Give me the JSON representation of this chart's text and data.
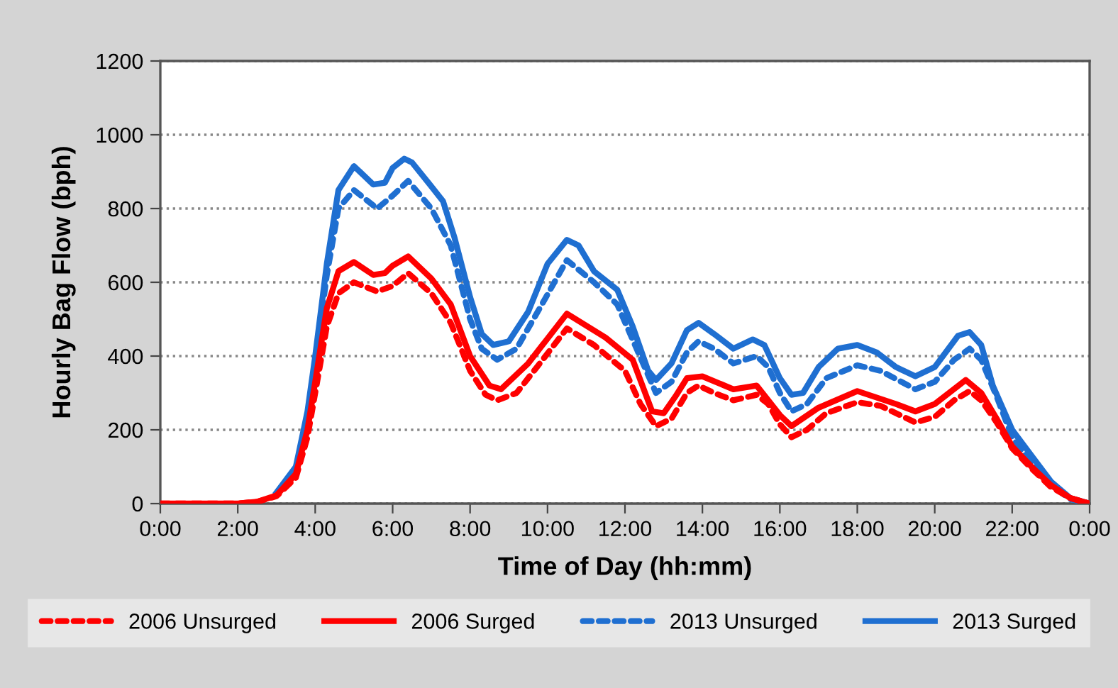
{
  "chart_data": {
    "type": "line",
    "xlabel": "Time of Day (hh:mm)",
    "ylabel": "Hourly Bag Flow (bph)",
    "xlim": [
      0,
      24
    ],
    "xticks": [
      {
        "value": 0,
        "label": "0:00"
      },
      {
        "value": 2,
        "label": "2:00"
      },
      {
        "value": 4,
        "label": "4:00"
      },
      {
        "value": 6,
        "label": "6:00"
      },
      {
        "value": 8,
        "label": "8:00"
      },
      {
        "value": 10,
        "label": "10:00"
      },
      {
        "value": 12,
        "label": "12:00"
      },
      {
        "value": 14,
        "label": "14:00"
      },
      {
        "value": 16,
        "label": "16:00"
      },
      {
        "value": 18,
        "label": "18:00"
      },
      {
        "value": 20,
        "label": "20:00"
      },
      {
        "value": 22,
        "label": "22:00"
      },
      {
        "value": 24,
        "label": "0:00"
      }
    ],
    "ylim": [
      0,
      1200
    ],
    "yticks": [
      0,
      200,
      400,
      600,
      800,
      1000,
      1200
    ],
    "grid": "y",
    "legend": "bottom",
    "marker": "none",
    "series": [
      {
        "name": "2006 Unsurged",
        "color": "#ff0000",
        "line_style": "dashed",
        "x": [
          0,
          1,
          2,
          2.5,
          3,
          3.5,
          3.8,
          4,
          4.3,
          4.6,
          5,
          5.6,
          6,
          6.4,
          7,
          7.5,
          8,
          8.4,
          8.7,
          9.2,
          9.8,
          10.5,
          11.2,
          12,
          12.4,
          12.8,
          13.2,
          13.6,
          13.9,
          14.3,
          14.8,
          15.4,
          15.7,
          16,
          16.3,
          16.7,
          17.2,
          18,
          18.6,
          19.5,
          20,
          20.5,
          20.9,
          21.2,
          21.6,
          22,
          22.5,
          23,
          23.5,
          24
        ],
        "values": [
          0,
          0,
          0,
          5,
          20,
          70,
          180,
          300,
          480,
          570,
          600,
          575,
          590,
          625,
          570,
          490,
          360,
          295,
          280,
          300,
          380,
          475,
          430,
          360,
          270,
          210,
          230,
          300,
          320,
          300,
          280,
          295,
          270,
          215,
          180,
          200,
          245,
          275,
          265,
          220,
          235,
          280,
          305,
          280,
          220,
          150,
          95,
          45,
          15,
          0
        ]
      },
      {
        "name": "2006 Surged",
        "color": "#ff0000",
        "line_style": "solid",
        "x": [
          0,
          1,
          2,
          2.5,
          3,
          3.5,
          3.8,
          4,
          4.3,
          4.6,
          5,
          5.5,
          5.8,
          6,
          6.4,
          7,
          7.5,
          8,
          8.5,
          8.8,
          9.5,
          10.5,
          11.5,
          12.2,
          12.7,
          13,
          13.3,
          13.6,
          14,
          14.8,
          15.4,
          15.7,
          16,
          16.3,
          17,
          18,
          19,
          19.5,
          20,
          20.8,
          21.2,
          21.6,
          22,
          22.5,
          23,
          23.5,
          24
        ],
        "values": [
          0,
          0,
          0,
          5,
          22,
          80,
          200,
          330,
          530,
          630,
          655,
          620,
          625,
          645,
          670,
          610,
          540,
          400,
          320,
          310,
          380,
          515,
          450,
          390,
          250,
          245,
          290,
          340,
          345,
          310,
          320,
          280,
          240,
          210,
          260,
          305,
          270,
          250,
          270,
          335,
          300,
          230,
          155,
          100,
          50,
          15,
          0
        ]
      },
      {
        "name": "2013 Unsurged",
        "color": "#1f6fd1",
        "line_style": "dashed",
        "x": [
          3,
          3.5,
          3.8,
          4,
          4.3,
          4.6,
          5,
          5.6,
          6,
          6.4,
          7,
          7.5,
          8,
          8.3,
          8.7,
          9.2,
          9.8,
          10.5,
          11.2,
          11.8,
          12.3,
          12.8,
          13.2,
          13.6,
          13.9,
          14.3,
          14.8,
          15.4,
          15.7,
          16,
          16.3,
          16.7,
          17.2,
          18,
          18.6,
          19.5,
          20,
          20.5,
          20.9,
          21.2,
          21.6,
          22,
          22.5,
          23,
          23.5,
          24
        ],
        "values": [
          28,
          95,
          240,
          380,
          620,
          800,
          850,
          800,
          835,
          875,
          800,
          700,
          500,
          420,
          390,
          420,
          530,
          660,
          600,
          540,
          420,
          300,
          330,
          410,
          440,
          420,
          380,
          400,
          370,
          300,
          250,
          270,
          340,
          375,
          360,
          310,
          330,
          390,
          420,
          390,
          290,
          180,
          110,
          50,
          12,
          0
        ]
      },
      {
        "name": "2013 Surged",
        "color": "#1f6fd1",
        "line_style": "solid",
        "x": [
          3,
          3.5,
          3.8,
          4,
          4.3,
          4.6,
          5,
          5.5,
          5.8,
          6,
          6.3,
          6.5,
          7,
          7.3,
          7.6,
          8,
          8.3,
          8.6,
          9,
          9.5,
          10,
          10.5,
          10.8,
          11.2,
          11.8,
          12.2,
          12.6,
          12.8,
          13.2,
          13.6,
          13.9,
          14.3,
          14.8,
          15.3,
          15.6,
          16,
          16.3,
          16.6,
          17,
          17.5,
          18,
          18.5,
          19,
          19.5,
          20,
          20.6,
          20.9,
          21.2,
          21.5,
          22,
          22.5,
          23,
          23.5,
          24
        ],
        "values": [
          30,
          100,
          250,
          400,
          650,
          850,
          915,
          865,
          870,
          910,
          935,
          925,
          860,
          820,
          720,
          560,
          460,
          430,
          440,
          520,
          650,
          715,
          700,
          630,
          580,
          480,
          360,
          335,
          380,
          470,
          490,
          460,
          420,
          445,
          430,
          340,
          295,
          300,
          370,
          420,
          430,
          410,
          370,
          345,
          370,
          455,
          465,
          430,
          320,
          200,
          130,
          60,
          15,
          0
        ]
      }
    ]
  }
}
